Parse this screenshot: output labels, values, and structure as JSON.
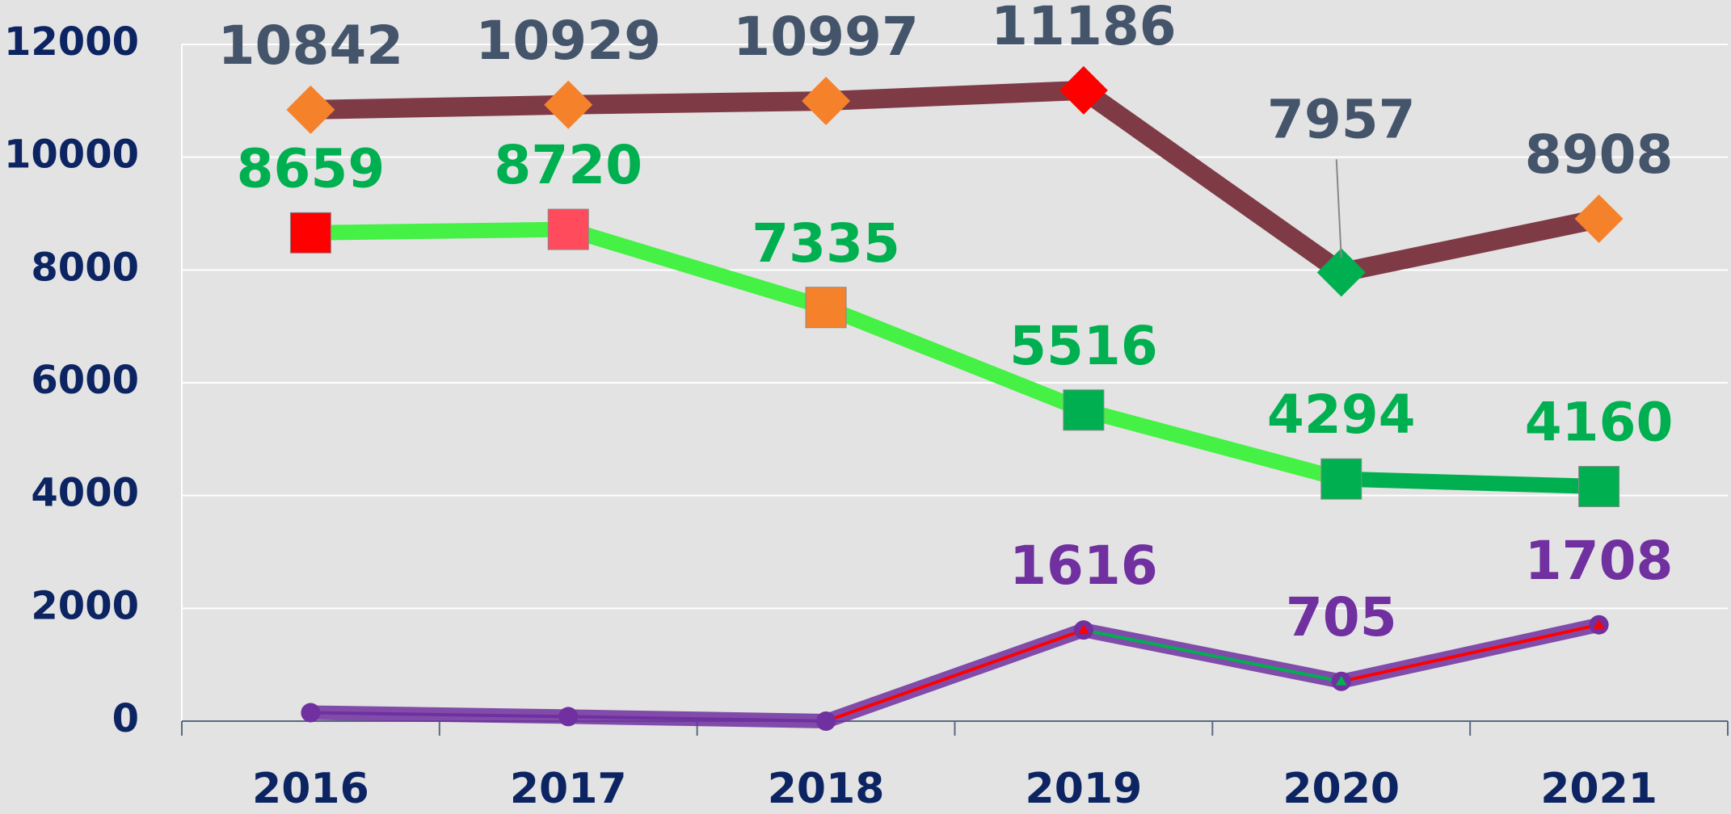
{
  "chart_data": {
    "type": "line",
    "categories": [
      "2016",
      "2017",
      "2018",
      "2019",
      "2020",
      "2021"
    ],
    "ylim": [
      0,
      12000
    ],
    "yticks": [
      0,
      2000,
      4000,
      6000,
      8000,
      10000,
      12000
    ],
    "grid": true,
    "series": [
      {
        "color": "#7f3b45",
        "label_color": "#44546a",
        "marker": "diamond",
        "values": [
          10842,
          10929,
          10997,
          11186,
          7957,
          8908
        ],
        "marker_colors": [
          "#f5822b",
          "#f5822b",
          "#f5822b",
          "#ff0000",
          "#00b050",
          "#f5822b"
        ]
      },
      {
        "color": "#44f144",
        "label_color": "#00b050",
        "marker": "square",
        "values": [
          8659,
          8720,
          7335,
          5516,
          4294,
          4160
        ],
        "segment_colors": [
          "#44f144",
          "#44f144",
          "#44f144",
          "#44f144",
          "#00b050"
        ],
        "marker_colors": [
          "#ff0000",
          "#ff4b5c",
          "#f5822b",
          "#00b050",
          "#00b050",
          "#00b050"
        ]
      },
      {
        "color": "#7030a0",
        "label_color": "#7030a0",
        "marker": "triangle",
        "values": [
          150,
          80,
          0,
          1616,
          705,
          1708
        ],
        "value_labels": [
          null,
          null,
          null,
          "1616",
          "705",
          "1708"
        ],
        "segment_colors": [
          "#7030a0",
          "#7030a0",
          "#ff0000",
          "#00b050",
          "#ff0000"
        ],
        "marker_colors": [
          "#7030a0",
          "#7030a0",
          "#7030a0",
          "#ff0000",
          "#00b050",
          "#ff0000"
        ]
      }
    ]
  }
}
